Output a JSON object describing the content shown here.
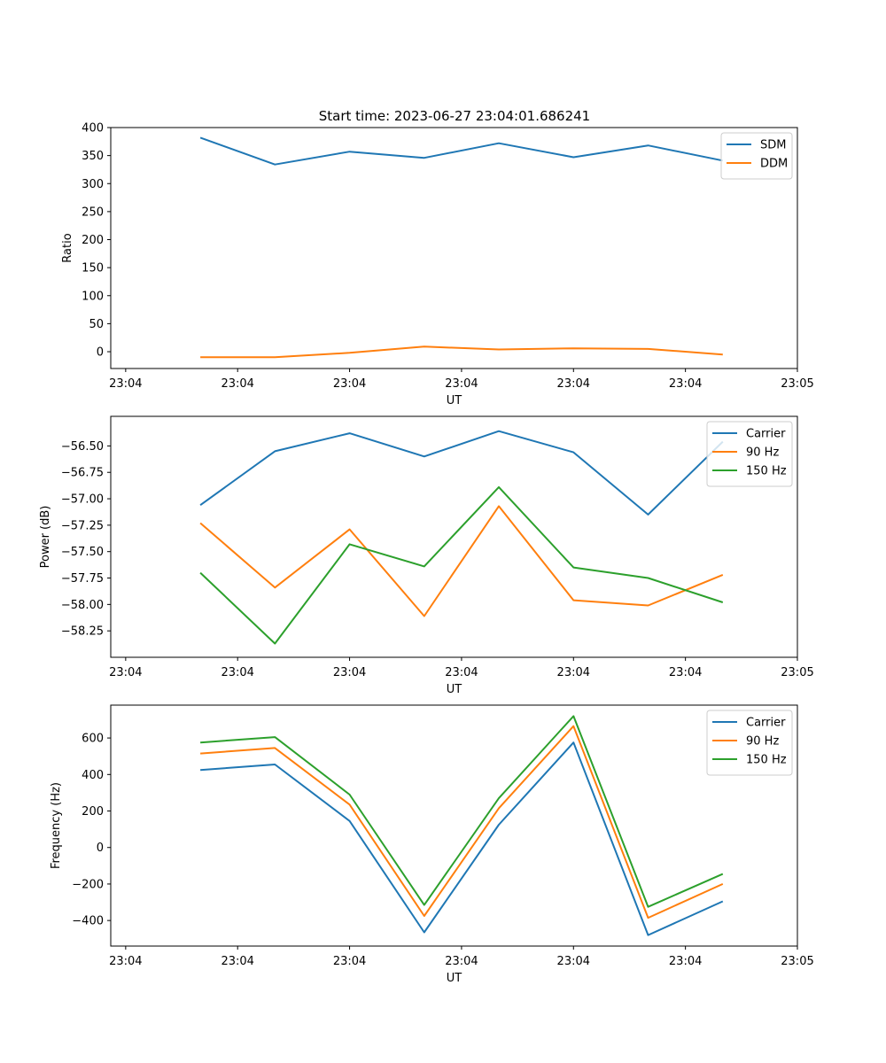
{
  "figure": {
    "title": "Start time: 2023-06-27 23:04:01.686241"
  },
  "chart_data": [
    {
      "type": "line",
      "title": "Start time: 2023-06-27 23:04:01.686241",
      "xlabel": "UT",
      "ylabel": "Ratio",
      "x_tick_labels": [
        "23:04",
        "23:04",
        "23:04",
        "23:04",
        "23:04",
        "23:04",
        "23:05"
      ],
      "x_points": [
        1,
        2,
        3,
        4,
        5,
        6,
        7,
        8
      ],
      "xlim": [
        -0.2,
        9.0
      ],
      "ylim": [
        -30,
        400
      ],
      "y_ticks": [
        0,
        50,
        100,
        150,
        200,
        250,
        300,
        350,
        400
      ],
      "legend_position": "upper-right",
      "series": [
        {
          "name": "SDM",
          "color": "#1f77b4",
          "values": [
            382,
            334,
            357,
            346,
            372,
            347,
            368,
            341
          ]
        },
        {
          "name": "DDM",
          "color": "#ff7f0e",
          "values": [
            -10,
            -10,
            -2,
            9,
            4,
            6,
            5,
            -5
          ]
        }
      ]
    },
    {
      "type": "line",
      "title": "",
      "xlabel": "UT",
      "ylabel": "Power (dB)",
      "x_tick_labels": [
        "23:04",
        "23:04",
        "23:04",
        "23:04",
        "23:04",
        "23:04",
        "23:05"
      ],
      "x_points": [
        1,
        2,
        3,
        4,
        5,
        6,
        7,
        8
      ],
      "xlim": [
        -0.2,
        9.0
      ],
      "ylim": [
        -58.5,
        -56.22
      ],
      "y_ticks": [
        -58.25,
        -58.0,
        -57.75,
        -57.5,
        -57.25,
        -57.0,
        -56.75,
        -56.5
      ],
      "y_tick_labels": [
        "−58.25",
        "−58.00",
        "−57.75",
        "−57.50",
        "−57.25",
        "−57.00",
        "−56.75",
        "−56.50"
      ],
      "legend_position": "upper-right",
      "series": [
        {
          "name": "Carrier",
          "color": "#1f77b4",
          "values": [
            -57.06,
            -56.55,
            -56.38,
            -56.6,
            -56.36,
            -56.56,
            -57.15,
            -56.46
          ]
        },
        {
          "name": "90 Hz",
          "color": "#ff7f0e",
          "values": [
            -57.23,
            -57.84,
            -57.29,
            -58.11,
            -57.07,
            -57.96,
            -58.01,
            -57.72
          ]
        },
        {
          "name": "150 Hz",
          "color": "#2ca02c",
          "values": [
            -57.7,
            -58.37,
            -57.43,
            -57.64,
            -56.89,
            -57.65,
            -57.75,
            -57.98
          ]
        }
      ]
    },
    {
      "type": "line",
      "title": "",
      "xlabel": "UT",
      "ylabel": "Frequency (Hz)",
      "x_tick_labels": [
        "23:04",
        "23:04",
        "23:04",
        "23:04",
        "23:04",
        "23:04",
        "23:05"
      ],
      "x_points": [
        1,
        2,
        3,
        4,
        5,
        6,
        7,
        8
      ],
      "xlim": [
        -0.2,
        9.0
      ],
      "ylim": [
        -540,
        780
      ],
      "y_ticks": [
        -400,
        -200,
        0,
        200,
        400,
        600
      ],
      "y_tick_labels": [
        "−400",
        "−200",
        "0",
        "200",
        "400",
        "600"
      ],
      "legend_position": "upper-right",
      "series": [
        {
          "name": "Carrier",
          "color": "#1f77b4",
          "values": [
            425,
            455,
            145,
            -465,
            125,
            575,
            -480,
            -295
          ]
        },
        {
          "name": "90 Hz",
          "color": "#ff7f0e",
          "values": [
            515,
            545,
            235,
            -375,
            215,
            665,
            -385,
            -200
          ]
        },
        {
          "name": "150 Hz",
          "color": "#2ca02c",
          "values": [
            575,
            605,
            290,
            -315,
            270,
            720,
            -325,
            -145
          ]
        }
      ]
    }
  ]
}
